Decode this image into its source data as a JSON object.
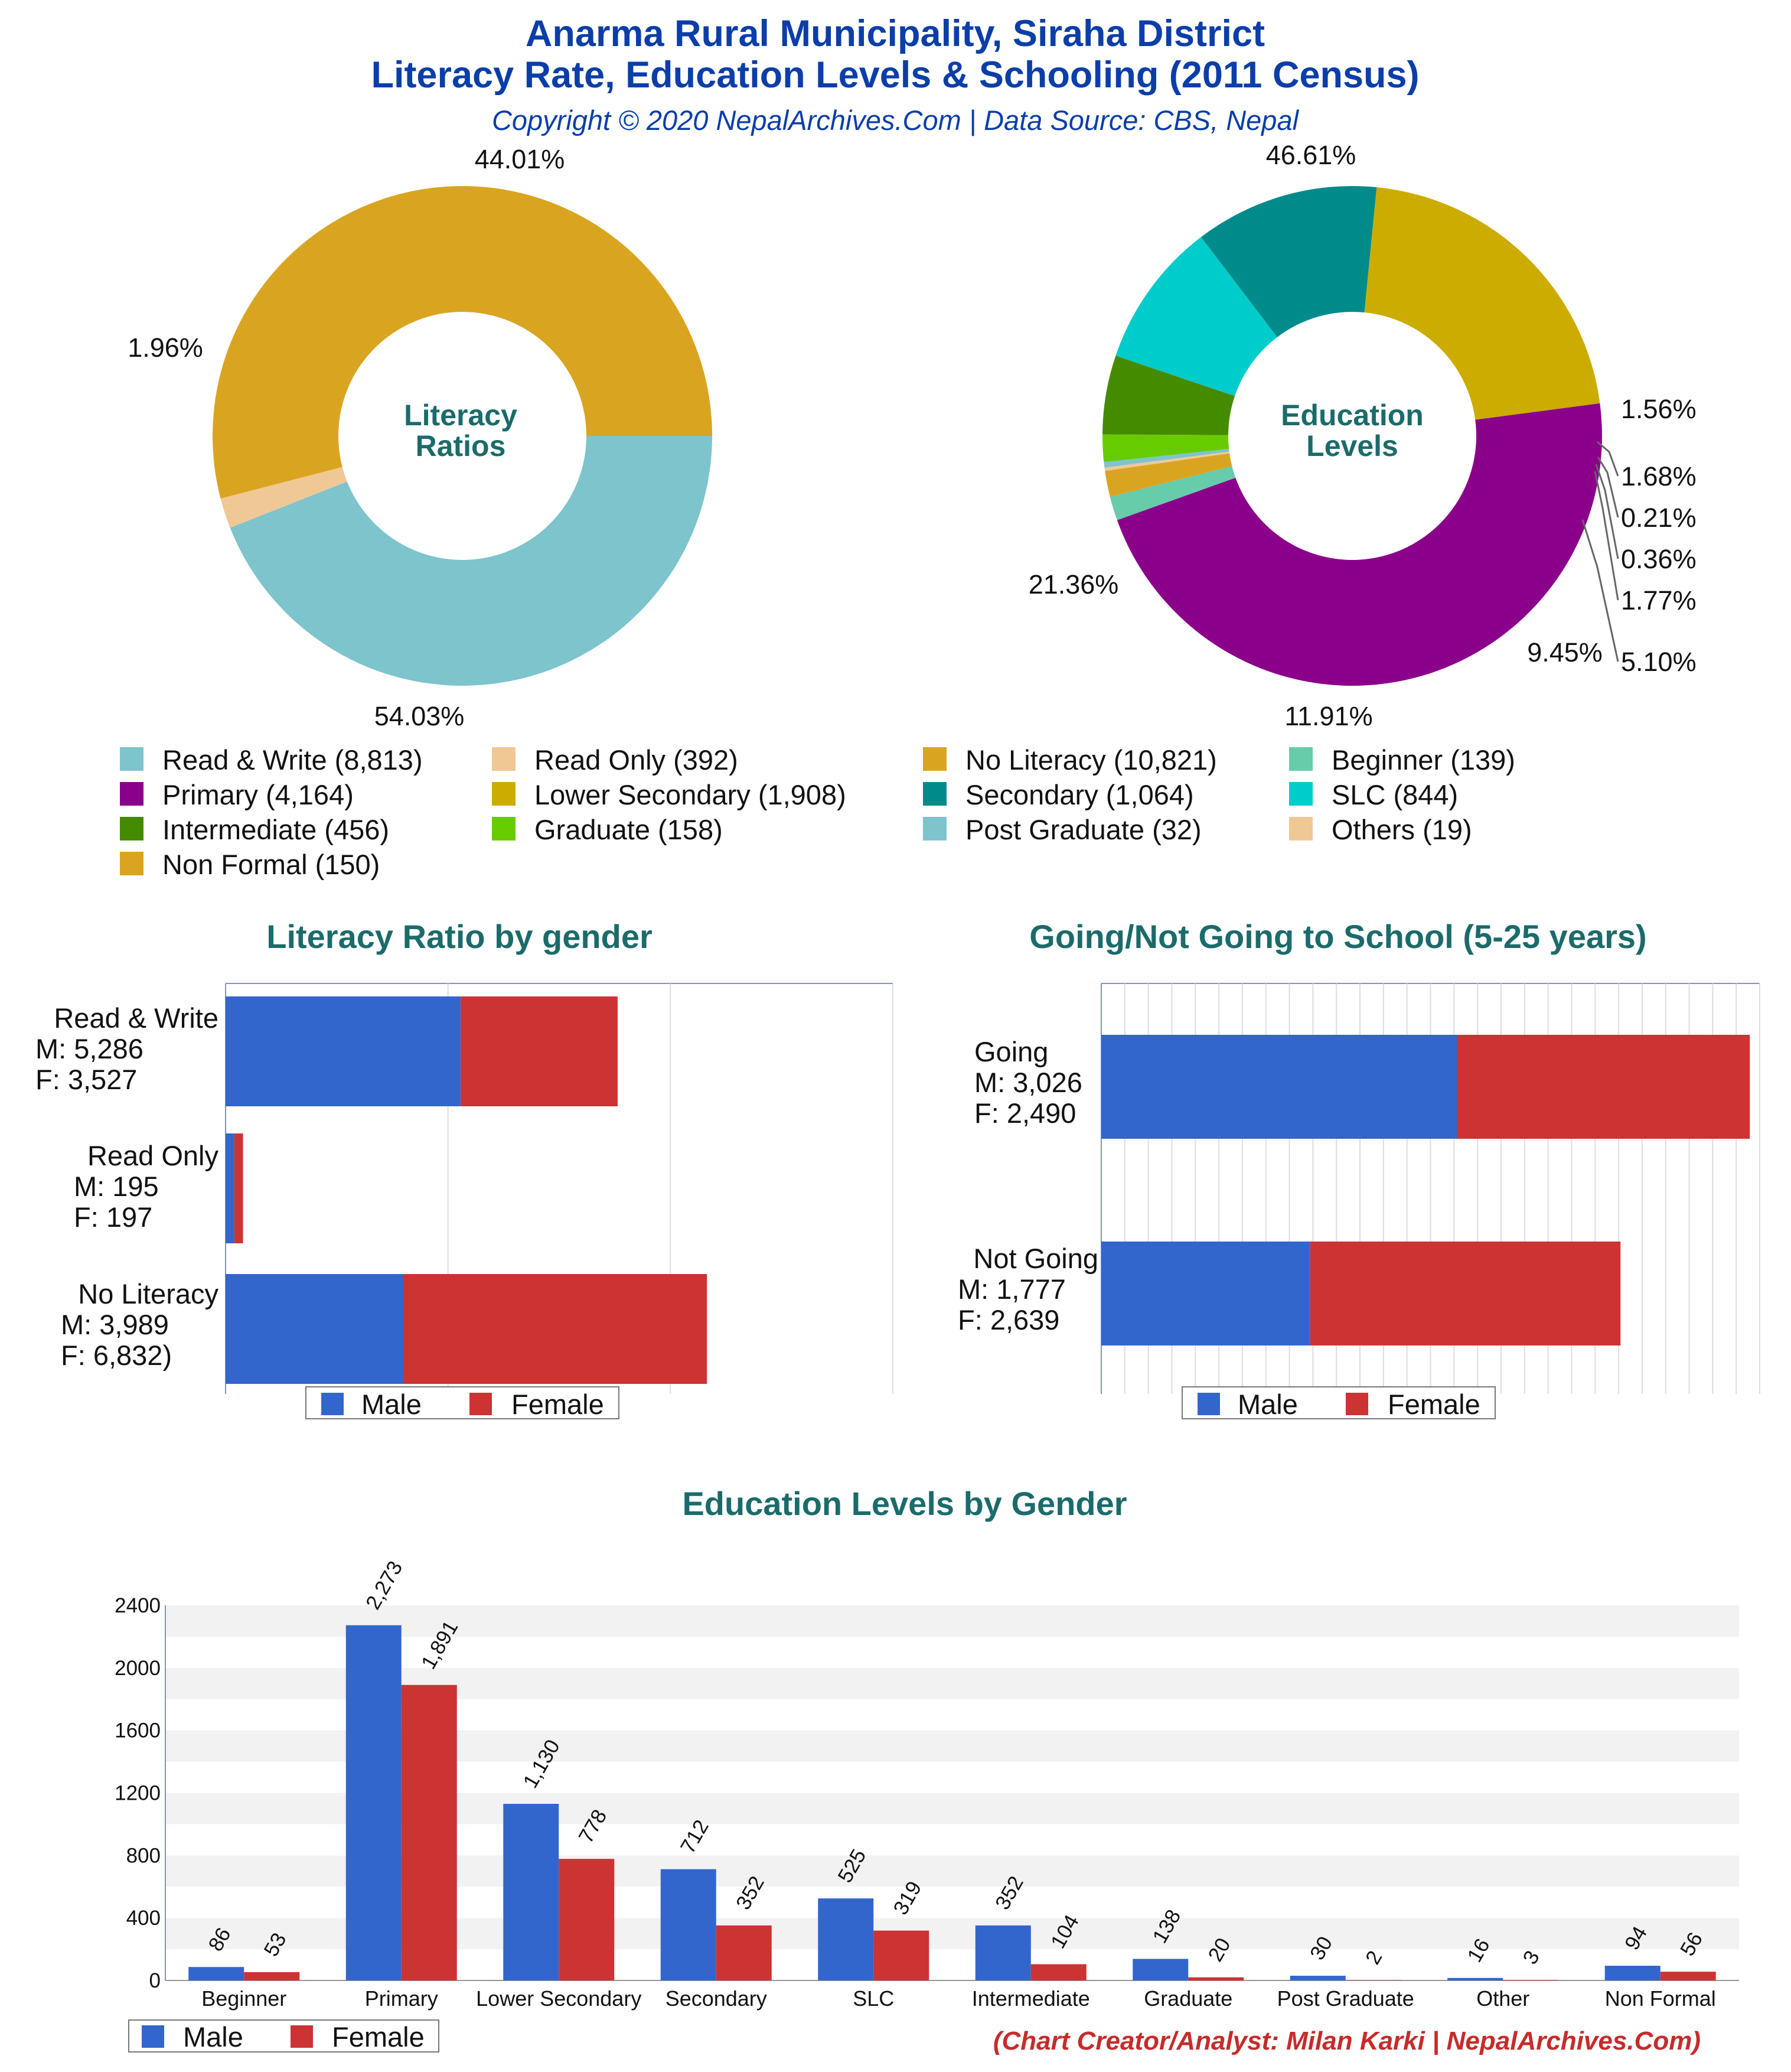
{
  "header": {
    "title_line1": "Anarma Rural Municipality, Siraha District",
    "title_line2": "Literacy Rate, Education Levels & Schooling (2011 Census)",
    "subtitle": "Copyright © 2020 NepalArchives.Com | Data Source: CBS, Nepal"
  },
  "colors": {
    "male": "#3366cc",
    "female": "#cc3333",
    "title": "#0b3ea8",
    "section_title": "#1b6b6b",
    "credit": "#c62b2b"
  },
  "literacy_donut": {
    "center_line1": "Literacy",
    "center_line2": "Ratios",
    "pct_labels": [
      "44.01%",
      "1.96%",
      "54.03%"
    ]
  },
  "education_donut": {
    "center_line1": "Education",
    "center_line2": "Levels",
    "pct_labels": [
      "46.61%",
      "1.56%",
      "1.68%",
      "0.21%",
      "0.36%",
      "1.77%",
      "5.10%",
      "9.45%",
      "11.91%",
      "21.36%"
    ]
  },
  "legend": [
    {
      "label": "Read & Write (8,813)",
      "color": "#7dc4cc"
    },
    {
      "label": "Read Only (392)",
      "color": "#f0c896"
    },
    {
      "label": "No Literacy (10,821)",
      "color": "#d9a521"
    },
    {
      "label": "Beginner (139)",
      "color": "#66ccaa"
    },
    {
      "label": "Primary (4,164)",
      "color": "#8b008b"
    },
    {
      "label": "Lower Secondary (1,908)",
      "color": "#ccac00"
    },
    {
      "label": "Secondary (1,064)",
      "color": "#008b8b"
    },
    {
      "label": "SLC (844)",
      "color": "#00cccc"
    },
    {
      "label": "Intermediate (456)",
      "color": "#458b00"
    },
    {
      "label": "Graduate (158)",
      "color": "#66cc00"
    },
    {
      "label": "Post Graduate (32)",
      "color": "#7dc4cc"
    },
    {
      "label": "Others (19)",
      "color": "#f0c896"
    },
    {
      "label": "Non Formal (150)",
      "color": "#d9a521"
    }
  ],
  "literacy_gender": {
    "title": "Literacy Ratio by gender",
    "rows": [
      {
        "l1": "Read & Write",
        "l2": "M: 5,286",
        "l3": "F: 3,527"
      },
      {
        "l1": "Read Only",
        "l2": "M: 195",
        "l3": "F: 197"
      },
      {
        "l1": "No Literacy",
        "l2": "M: 3,989",
        "l3": "F: 6,832)"
      }
    ],
    "legend_male": "Male",
    "legend_female": "Female"
  },
  "school_gender": {
    "title": "Going/Not Going to School (5-25 years)",
    "rows": [
      {
        "l1": "Going",
        "l2": "M: 3,026",
        "l3": "F: 2,490"
      },
      {
        "l1": "Not Going",
        "l2": "M: 1,777",
        "l3": "F: 2,639"
      }
    ],
    "legend_male": "Male",
    "legend_female": "Female"
  },
  "education_gender": {
    "title": "Education Levels by Gender",
    "legend_male": "Male",
    "legend_female": "Female"
  },
  "credit": "(Chart Creator/Analyst: Milan Karki | NepalArchives.Com)",
  "chart_data": [
    {
      "type": "pie",
      "variant": "donut",
      "center_label": "Literacy Ratios",
      "categories": [
        "Read & Write",
        "Read Only",
        "No Literacy"
      ],
      "values": [
        8813,
        392,
        10821
      ],
      "percent_labels": [
        "44.01%",
        "1.96%",
        "54.03%"
      ],
      "colors": [
        "#7dc4cc",
        "#f0c896",
        "#d9a521"
      ]
    },
    {
      "type": "pie",
      "variant": "donut",
      "center_label": "Education Levels",
      "categories": [
        "Primary",
        "Beginner",
        "Non Formal",
        "Others",
        "Post Graduate",
        "Graduate",
        "Intermediate",
        "SLC",
        "Secondary",
        "Lower Secondary"
      ],
      "values": [
        4164,
        139,
        150,
        19,
        32,
        158,
        456,
        844,
        1064,
        1908
      ],
      "percent_labels": [
        "46.61%",
        "1.56%",
        "1.68%",
        "0.21%",
        "0.36%",
        "1.77%",
        "5.10%",
        "9.45%",
        "11.91%",
        "21.36%"
      ],
      "colors": [
        "#8b008b",
        "#66ccaa",
        "#d9a521",
        "#f0c896",
        "#7dc4cc",
        "#66cc00",
        "#458b00",
        "#00cccc",
        "#008b8b",
        "#ccac00"
      ]
    },
    {
      "type": "bar",
      "orientation": "horizontal",
      "stacked": true,
      "title": "Literacy Ratio by gender",
      "categories": [
        "Read & Write",
        "Read Only",
        "No Literacy"
      ],
      "series": [
        {
          "name": "Male",
          "values": [
            5286,
            195,
            3989
          ]
        },
        {
          "name": "Female",
          "values": [
            3527,
            197,
            6832
          ]
        }
      ],
      "xlim": [
        0,
        15000
      ],
      "legend": "bottom"
    },
    {
      "type": "bar",
      "orientation": "horizontal",
      "stacked": true,
      "title": "Going/Not Going to School (5-25 years)",
      "categories": [
        "Going",
        "Not Going"
      ],
      "series": [
        {
          "name": "Male",
          "values": [
            3026,
            1777
          ]
        },
        {
          "name": "Female",
          "values": [
            2490,
            2639
          ]
        }
      ],
      "xlim": [
        0,
        5600
      ],
      "legend": "bottom"
    },
    {
      "type": "bar",
      "orientation": "vertical",
      "title": "Education Levels by Gender",
      "categories": [
        "Beginner",
        "Primary",
        "Lower Secondary",
        "Secondary",
        "SLC",
        "Intermediate",
        "Graduate",
        "Post Graduate",
        "Other",
        "Non Formal"
      ],
      "series": [
        {
          "name": "Male",
          "values": [
            86,
            2273,
            1130,
            712,
            525,
            352,
            138,
            30,
            16,
            94
          ],
          "labels": [
            "86",
            "2,273",
            "1,130",
            "712",
            "525",
            "352",
            "138",
            "30",
            "16",
            "94"
          ]
        },
        {
          "name": "Female",
          "values": [
            53,
            1891,
            778,
            352,
            319,
            104,
            20,
            2,
            3,
            56
          ],
          "labels": [
            "53",
            "1,891",
            "778",
            "352",
            "319",
            "104",
            "20",
            "2",
            "3",
            "56"
          ]
        }
      ],
      "ylim": [
        0,
        2400
      ],
      "yticks": [
        "0",
        "400",
        "800",
        "1200",
        "1600",
        "2000",
        "2400"
      ],
      "grid": true,
      "legend": "bottom-left"
    }
  ]
}
